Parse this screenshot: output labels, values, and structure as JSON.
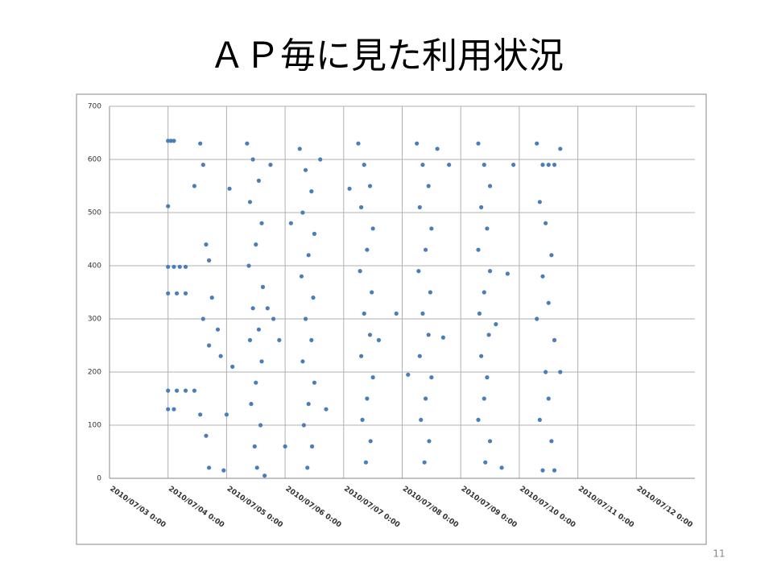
{
  "title": "ＡＰ毎に見た利用状況",
  "page_number": "11",
  "chart_data": {
    "type": "scatter",
    "x": [
      1.0,
      1.05,
      1.1,
      1.0,
      1.0,
      1.1,
      1.2,
      1.3,
      1.0,
      1.15,
      1.3,
      1.0,
      1.15,
      1.3,
      1.45,
      1.0,
      1.1,
      1.45,
      1.55,
      1.6,
      1.65,
      1.7,
      1.75,
      1.6,
      1.7,
      1.55,
      1.65,
      1.7,
      1.85,
      1.9,
      1.95,
      2.0,
      2.1,
      2.05,
      2.35,
      2.45,
      2.55,
      2.4,
      2.6,
      2.5,
      2.38,
      2.62,
      2.45,
      2.55,
      2.4,
      2.6,
      2.5,
      2.42,
      2.58,
      2.48,
      2.52,
      2.65,
      2.7,
      2.8,
      2.9,
      2.75,
      3.25,
      3.35,
      3.45,
      3.3,
      3.5,
      3.4,
      3.28,
      3.48,
      3.35,
      3.45,
      3.3,
      3.5,
      3.4,
      3.32,
      3.46,
      3.38,
      3.1,
      3.6,
      3.0,
      3.7,
      4.25,
      4.35,
      4.45,
      4.3,
      4.5,
      4.4,
      4.28,
      4.48,
      4.35,
      4.45,
      4.3,
      4.5,
      4.4,
      4.32,
      4.46,
      4.38,
      4.6,
      4.9,
      4.1,
      5.25,
      5.35,
      5.45,
      5.3,
      5.5,
      5.4,
      5.28,
      5.48,
      5.35,
      5.45,
      5.3,
      5.5,
      5.4,
      5.32,
      5.46,
      5.38,
      5.6,
      5.8,
      5.1,
      5.7,
      6.3,
      6.4,
      6.5,
      6.35,
      6.45,
      6.3,
      6.5,
      6.4,
      6.32,
      6.48,
      6.35,
      6.45,
      6.4,
      6.3,
      6.5,
      6.42,
      6.7,
      6.8,
      6.9,
      6.6,
      7.3,
      7.4,
      7.5,
      7.6,
      7.35,
      7.45,
      7.55,
      7.4,
      7.5,
      7.3,
      7.6,
      7.45,
      7.5,
      7.35,
      7.55,
      7.4,
      7.6,
      7.7,
      7.7
    ],
    "series": [
      {
        "color": "#4a7ebb",
        "values": [
          635,
          635,
          635,
          512,
          398,
          398,
          398,
          398,
          348,
          348,
          348,
          165,
          165,
          165,
          165,
          130,
          130,
          550,
          630,
          590,
          440,
          410,
          340,
          300,
          250,
          120,
          80,
          20,
          280,
          230,
          15,
          120,
          210,
          545,
          630,
          600,
          560,
          520,
          480,
          440,
          400,
          360,
          320,
          280,
          260,
          220,
          180,
          140,
          100,
          60,
          20,
          5,
          320,
          300,
          260,
          590,
          620,
          580,
          540,
          500,
          460,
          420,
          380,
          340,
          300,
          260,
          220,
          180,
          140,
          100,
          60,
          20,
          480,
          600,
          60,
          130,
          630,
          590,
          550,
          510,
          470,
          430,
          390,
          350,
          310,
          270,
          230,
          190,
          150,
          110,
          70,
          30,
          260,
          310,
          545,
          630,
          590,
          550,
          510,
          470,
          430,
          390,
          350,
          310,
          270,
          230,
          190,
          150,
          110,
          70,
          30,
          620,
          590,
          195,
          265,
          630,
          590,
          550,
          510,
          470,
          430,
          390,
          350,
          310,
          270,
          230,
          190,
          150,
          110,
          70,
          30,
          20,
          385,
          590,
          290,
          630,
          590,
          590,
          590,
          520,
          480,
          420,
          380,
          330,
          300,
          260,
          200,
          150,
          110,
          70,
          15,
          15,
          200,
          620
        ]
      }
    ],
    "xlim": [
      0,
      10
    ],
    "xticks": [
      {
        "value": 0,
        "label": "2010/07/03 0:00"
      },
      {
        "value": 1,
        "label": "2010/07/04 0:00"
      },
      {
        "value": 2,
        "label": "2010/07/05 0:00"
      },
      {
        "value": 3,
        "label": "2010/07/06 0:00"
      },
      {
        "value": 4,
        "label": "2010/07/07 0:00"
      },
      {
        "value": 5,
        "label": "2010/07/08 0:00"
      },
      {
        "value": 6,
        "label": "2010/07/09 0:00"
      },
      {
        "value": 7,
        "label": "2010/07/10 0:00"
      },
      {
        "value": 8,
        "label": "2010/07/11 0:00"
      },
      {
        "value": 9,
        "label": "2010/07/12 0:00"
      }
    ],
    "ylim": [
      0,
      700
    ],
    "yticks": [
      0,
      100,
      200,
      300,
      400,
      500,
      600,
      700
    ],
    "grid": true
  }
}
